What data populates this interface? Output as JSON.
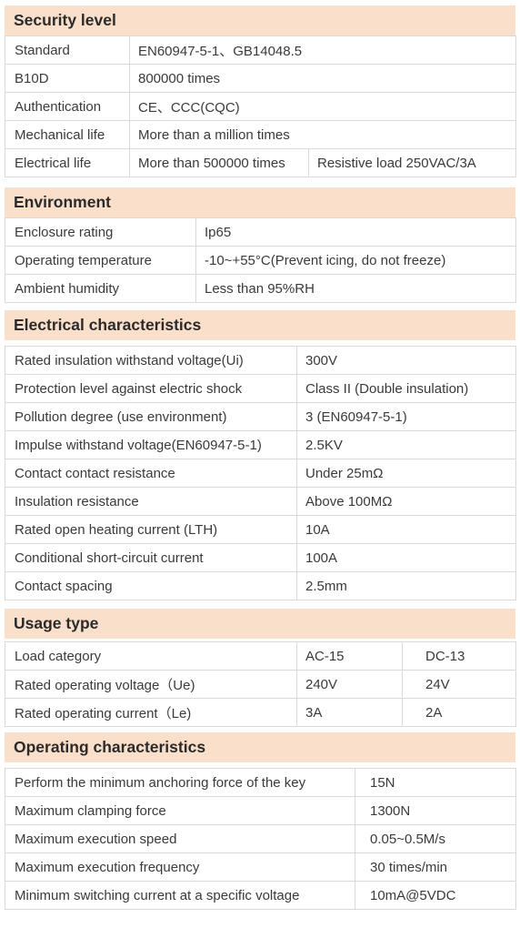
{
  "security": {
    "title": "Security level",
    "rows": [
      {
        "label": "Standard",
        "value": "EN60947-5-1、GB14048.5"
      },
      {
        "label": "B10D",
        "value": "800000 times"
      },
      {
        "label": "Authentication",
        "value": "CE、CCC(CQC)"
      },
      {
        "label": "Mechanical life",
        "value": "More than a million times"
      },
      {
        "label": "Electrical life",
        "value": "More than 500000 times",
        "extra": "Resistive  load 250VAC/3A"
      }
    ]
  },
  "environment": {
    "title": "Environment",
    "rows": [
      {
        "label": "Enclosure rating",
        "value": "Ip65"
      },
      {
        "label": "Operating temperature",
        "value": "-10~+55°C(Prevent icing, do not freeze)"
      },
      {
        "label": "Ambient humidity",
        "value": "Less than 95%RH"
      }
    ]
  },
  "electrical": {
    "title": "Electrical characteristics",
    "rows": [
      {
        "label": "Rated insulation withstand voltage(Ui)",
        "value": "300V"
      },
      {
        "label": "Protection level against electric shock",
        "value": "Class II (Double insulation)"
      },
      {
        "label": "Pollution degree (use environment)",
        "value": "3 (EN60947-5-1)"
      },
      {
        "label": "Impulse withstand voltage(EN60947-5-1)",
        "value": "2.5KV"
      },
      {
        "label": "Contact contact resistance",
        "value": "Under 25mΩ"
      },
      {
        "label": "Insulation resistance",
        "value": "Above 100MΩ"
      },
      {
        "label": "Rated open heating current (LTH)",
        "value": "10A"
      },
      {
        "label": "Conditional short-circuit current",
        "value": "100A"
      },
      {
        "label": "Contact spacing",
        "value": "2.5mm"
      }
    ]
  },
  "usage": {
    "title": "Usage type",
    "rows": [
      {
        "label": "Load category",
        "ac": "AC-15",
        "dc": "DC-13"
      },
      {
        "label": "Rated operating voltage（Ue)",
        "ac": "240V",
        "dc": "24V"
      },
      {
        "label": "Rated operating current（Le)",
        "ac": "3A",
        "dc": "2A"
      }
    ]
  },
  "operating": {
    "title": "Operating characteristics",
    "rows": [
      {
        "label": "Perform the minimum anchoring force of the key",
        "value": "15N"
      },
      {
        "label": "Maximum clamping force",
        "value": "1300N"
      },
      {
        "label": "Maximum execution speed",
        "value": "0.05~0.5M/s"
      },
      {
        "label": "Maximum execution frequency",
        "value": "30 times/min"
      },
      {
        "label": "Minimum switching current at a specific voltage",
        "value": "10mA@5VDC"
      }
    ]
  }
}
